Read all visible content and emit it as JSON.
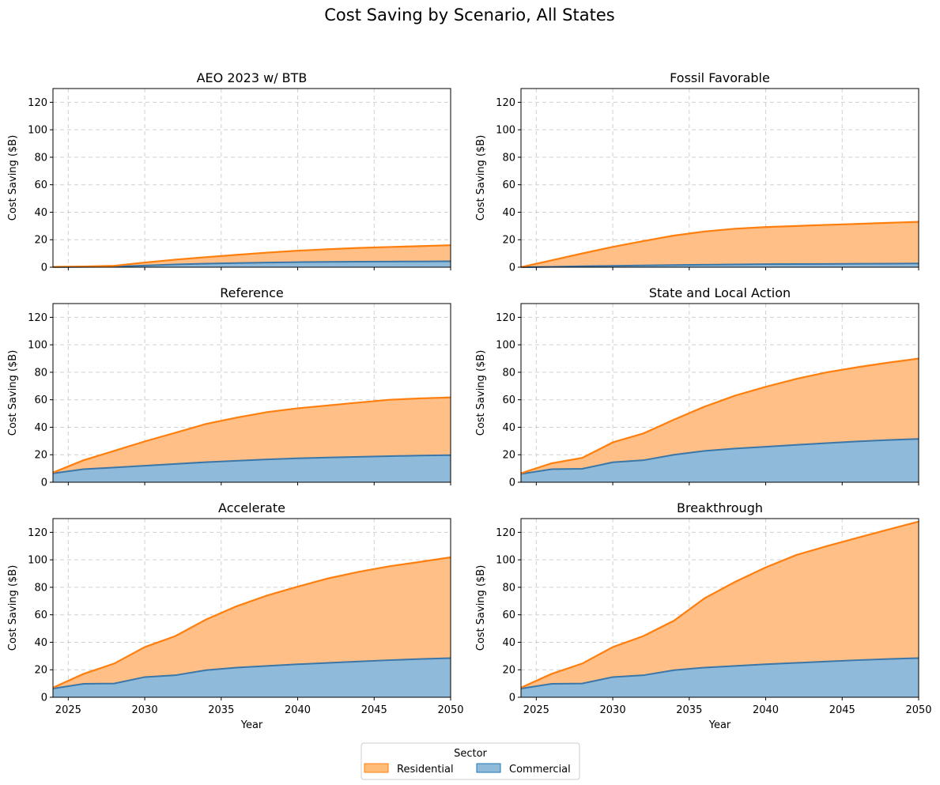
{
  "figure": {
    "title": "Cost Saving by Scenario, All States"
  },
  "legend": {
    "title": "Sector",
    "placement": "bottom-center",
    "items": [
      {
        "label": "Residential",
        "color": "#ff7f0e",
        "fill": "#ffbb78"
      },
      {
        "label": "Commercial",
        "color": "#1f77b4",
        "fill": "#8fbad9"
      }
    ]
  },
  "colors": {
    "residential_line": "#ff7f0e",
    "residential_fill": "#ffbf86",
    "commercial_line": "#3a77a8",
    "commercial_fill": "#8fbad9",
    "grid": "#d0d0d0"
  },
  "chart_data": [
    {
      "type": "area",
      "stacked": true,
      "title": "AEO 2023 w/ BTB",
      "xlabel": "",
      "ylabel": "Cost Saving ($B)",
      "xlim": [
        2024,
        2050
      ],
      "ylim": [
        0,
        130
      ],
      "xticks": [
        2025,
        2030,
        2035,
        2040,
        2045,
        2050
      ],
      "yticks": [
        0,
        20,
        40,
        60,
        80,
        100,
        120
      ],
      "grid": true,
      "x": [
        2024,
        2026,
        2028,
        2030,
        2032,
        2034,
        2036,
        2038,
        2040,
        2042,
        2044,
        2046,
        2048,
        2050
      ],
      "series": [
        {
          "name": "Commercial",
          "values": [
            0.1,
            0.2,
            0.4,
            1.2,
            2.0,
            2.6,
            3.0,
            3.4,
            3.7,
            3.9,
            4.0,
            4.1,
            4.2,
            4.3
          ]
        },
        {
          "name": "Residential",
          "values": [
            0.1,
            0.3,
            0.6,
            2.2,
            3.5,
            4.7,
            6.0,
            7.2,
            8.3,
            9.2,
            10.0,
            10.6,
            11.1,
            11.7
          ]
        }
      ]
    },
    {
      "type": "area",
      "stacked": true,
      "title": "Fossil Favorable",
      "xlabel": "",
      "ylabel": "Cost Saving ($B)",
      "xlim": [
        2024,
        2050
      ],
      "ylim": [
        0,
        130
      ],
      "xticks": [
        2025,
        2030,
        2035,
        2040,
        2045,
        2050
      ],
      "yticks": [
        0,
        20,
        40,
        60,
        80,
        100,
        120
      ],
      "grid": true,
      "x": [
        2024,
        2026,
        2028,
        2030,
        2032,
        2034,
        2036,
        2038,
        2040,
        2042,
        2044,
        2046,
        2048,
        2050
      ],
      "series": [
        {
          "name": "Commercial",
          "values": [
            0.0,
            0.3,
            0.7,
            1.0,
            1.3,
            1.6,
            1.8,
            2.0,
            2.2,
            2.3,
            2.4,
            2.5,
            2.6,
            2.7
          ]
        },
        {
          "name": "Residential",
          "values": [
            0.0,
            4.7,
            9.3,
            13.8,
            17.7,
            21.4,
            24.2,
            26.0,
            27.0,
            27.7,
            28.4,
            29.0,
            29.7,
            30.3
          ]
        }
      ]
    },
    {
      "type": "area",
      "stacked": true,
      "title": "Reference",
      "xlabel": "",
      "ylabel": "Cost Saving ($B)",
      "xlim": [
        2024,
        2050
      ],
      "ylim": [
        0,
        130
      ],
      "xticks": [
        2025,
        2030,
        2035,
        2040,
        2045,
        2050
      ],
      "yticks": [
        0,
        20,
        40,
        60,
        80,
        100,
        120
      ],
      "grid": true,
      "x": [
        2024,
        2026,
        2028,
        2030,
        2032,
        2034,
        2036,
        2038,
        2040,
        2042,
        2044,
        2046,
        2048,
        2050
      ],
      "series": [
        {
          "name": "Commercial",
          "values": [
            6.5,
            9.5,
            10.7,
            12.0,
            13.3,
            14.6,
            15.6,
            16.6,
            17.4,
            18.0,
            18.5,
            19.0,
            19.4,
            19.7
          ]
        },
        {
          "name": "Residential",
          "values": [
            0.5,
            6.5,
            12.1,
            17.7,
            22.7,
            27.8,
            31.4,
            34.4,
            36.4,
            37.9,
            39.5,
            41.0,
            41.6,
            42.0
          ]
        }
      ]
    },
    {
      "type": "area",
      "stacked": true,
      "title": "State and Local Action",
      "xlabel": "",
      "ylabel": "Cost Saving ($B)",
      "xlim": [
        2024,
        2050
      ],
      "ylim": [
        0,
        130
      ],
      "xticks": [
        2025,
        2030,
        2035,
        2040,
        2045,
        2050
      ],
      "yticks": [
        0,
        20,
        40,
        60,
        80,
        100,
        120
      ],
      "grid": true,
      "x": [
        2024,
        2026,
        2028,
        2030,
        2032,
        2034,
        2036,
        2038,
        2040,
        2042,
        2044,
        2046,
        2048,
        2050
      ],
      "series": [
        {
          "name": "Commercial",
          "values": [
            6.0,
            9.5,
            9.8,
            14.5,
            16.0,
            20.0,
            22.8,
            24.5,
            25.8,
            27.2,
            28.5,
            29.7,
            30.7,
            31.5
          ]
        },
        {
          "name": "Residential",
          "values": [
            0.5,
            4.3,
            7.9,
            14.5,
            19.5,
            25.5,
            32.2,
            38.5,
            43.6,
            48.0,
            51.5,
            54.0,
            56.3,
            58.5
          ]
        }
      ]
    },
    {
      "type": "area",
      "stacked": true,
      "title": "Accelerate",
      "xlabel": "Year",
      "ylabel": "Cost Saving ($B)",
      "xlim": [
        2024,
        2050
      ],
      "ylim": [
        0,
        130
      ],
      "xticks": [
        2025,
        2030,
        2035,
        2040,
        2045,
        2050
      ],
      "yticks": [
        0,
        20,
        40,
        60,
        80,
        100,
        120
      ],
      "grid": true,
      "x": [
        2024,
        2026,
        2028,
        2030,
        2032,
        2034,
        2036,
        2038,
        2040,
        2042,
        2044,
        2046,
        2048,
        2050
      ],
      "series": [
        {
          "name": "Commercial",
          "values": [
            6.3,
            9.8,
            10.0,
            14.7,
            16.0,
            19.7,
            21.6,
            22.8,
            24.0,
            25.0,
            26.0,
            27.0,
            27.8,
            28.5
          ]
        },
        {
          "name": "Residential",
          "values": [
            0.7,
            7.2,
            14.5,
            21.8,
            28.5,
            36.8,
            44.6,
            51.2,
            56.5,
            61.5,
            65.3,
            68.3,
            70.7,
            73.3
          ]
        }
      ]
    },
    {
      "type": "area",
      "stacked": true,
      "title": "Breakthrough",
      "xlabel": "Year",
      "ylabel": "Cost Saving ($B)",
      "xlim": [
        2024,
        2050
      ],
      "ylim": [
        0,
        130
      ],
      "xticks": [
        2025,
        2030,
        2035,
        2040,
        2045,
        2050
      ],
      "yticks": [
        0,
        20,
        40,
        60,
        80,
        100,
        120
      ],
      "grid": true,
      "x": [
        2024,
        2026,
        2028,
        2030,
        2032,
        2034,
        2036,
        2038,
        2040,
        2042,
        2044,
        2046,
        2048,
        2050
      ],
      "series": [
        {
          "name": "Commercial",
          "values": [
            6.3,
            9.8,
            10.0,
            14.7,
            16.0,
            19.7,
            21.6,
            22.8,
            24.0,
            25.0,
            26.0,
            27.0,
            27.8,
            28.5
          ]
        },
        {
          "name": "Residential",
          "values": [
            0.7,
            7.2,
            14.5,
            21.8,
            28.5,
            36.0,
            50.4,
            61.2,
            70.5,
            78.5,
            84.0,
            89.0,
            94.2,
            99.3
          ]
        }
      ]
    }
  ]
}
